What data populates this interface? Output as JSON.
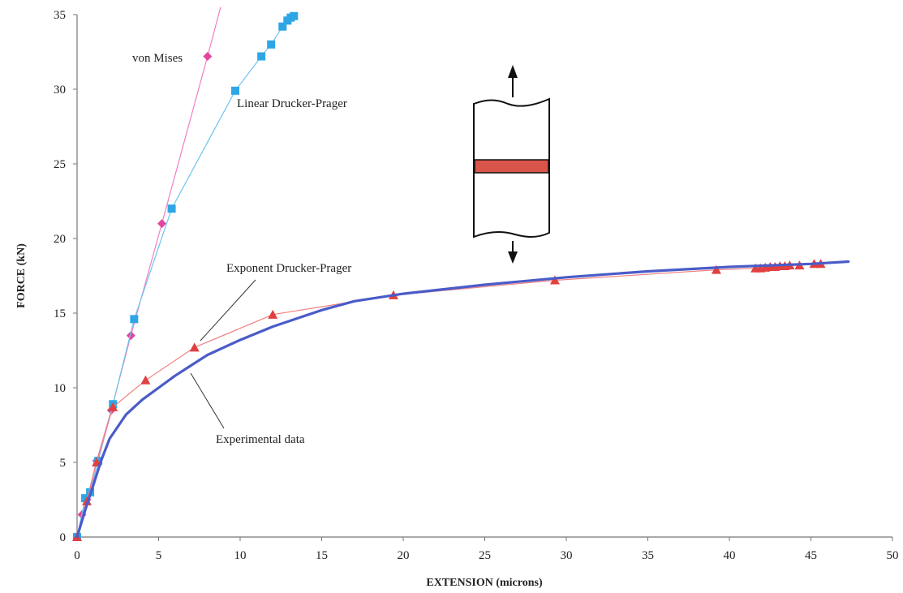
{
  "chart_data": {
    "type": "scatter",
    "xlabel": "EXTENSION (microns)",
    "ylabel": "FORCE (kN)",
    "xlim": [
      0,
      50
    ],
    "ylim": [
      0,
      35
    ],
    "x_ticks": [
      0,
      5,
      10,
      15,
      20,
      25,
      30,
      35,
      40,
      45,
      50
    ],
    "y_ticks": [
      0,
      5,
      10,
      15,
      20,
      25,
      30,
      35
    ],
    "grid": false,
    "legend": "none",
    "annotations": [
      "von Mises",
      "Linear Drucker-Prager",
      "Exponent Drucker-Prager",
      "Experimental data"
    ],
    "series": [
      {
        "label_ref": "von Mises",
        "marker": "diamond",
        "color": "#e0479e",
        "line_color": "#f27fc4",
        "points": [
          [
            0,
            0
          ],
          [
            0.3,
            1.5
          ],
          [
            0.6,
            2.5
          ],
          [
            1.2,
            5.1
          ],
          [
            2.1,
            8.5
          ],
          [
            3.3,
            13.5
          ],
          [
            5.2,
            21.0
          ],
          [
            8.0,
            32.2
          ]
        ],
        "line_extends_to": [
          8.8,
          35.5
        ]
      },
      {
        "label_ref": "Linear Drucker-Prager",
        "marker": "square",
        "color": "#2ea6e6",
        "line_color": "#6cc4f0",
        "points": [
          [
            0,
            0
          ],
          [
            0.5,
            2.6
          ],
          [
            0.8,
            3.0
          ],
          [
            1.3,
            5.1
          ],
          [
            2.2,
            8.9
          ],
          [
            3.5,
            14.6
          ],
          [
            5.8,
            22.0
          ],
          [
            9.7,
            29.9
          ],
          [
            11.3,
            32.2
          ],
          [
            11.9,
            33.0
          ],
          [
            12.6,
            34.2
          ],
          [
            12.9,
            34.6
          ],
          [
            13.1,
            34.8
          ],
          [
            13.3,
            34.9
          ]
        ]
      },
      {
        "label_ref": "Exponent Drucker-Prager",
        "marker": "triangle",
        "color": "#e04040",
        "line_color": "#f08080",
        "points": [
          [
            0,
            0
          ],
          [
            0.6,
            2.4
          ],
          [
            1.2,
            5.0
          ],
          [
            2.2,
            8.7
          ],
          [
            4.2,
            10.5
          ],
          [
            7.2,
            12.7
          ],
          [
            12.0,
            14.9
          ],
          [
            19.4,
            16.2
          ],
          [
            29.3,
            17.2
          ],
          [
            39.2,
            17.9
          ],
          [
            41.6,
            18.0
          ],
          [
            41.9,
            18.0
          ],
          [
            42.2,
            18.05
          ],
          [
            42.5,
            18.1
          ],
          [
            42.8,
            18.1
          ],
          [
            43.1,
            18.15
          ],
          [
            43.4,
            18.15
          ],
          [
            43.7,
            18.2
          ],
          [
            44.3,
            18.2
          ],
          [
            45.2,
            18.3
          ],
          [
            45.6,
            18.3
          ]
        ]
      },
      {
        "label_ref": "Experimental data",
        "marker": "none",
        "color": "#4a5cc8",
        "points": [
          [
            0,
            0
          ],
          [
            0.5,
            1.8
          ],
          [
            1.0,
            3.5
          ],
          [
            1.5,
            5.2
          ],
          [
            2.0,
            6.6
          ],
          [
            3.0,
            8.2
          ],
          [
            4.0,
            9.2
          ],
          [
            5.0,
            10.0
          ],
          [
            6.0,
            10.8
          ],
          [
            7.0,
            11.5
          ],
          [
            8.0,
            12.2
          ],
          [
            10.0,
            13.2
          ],
          [
            12.0,
            14.1
          ],
          [
            15.0,
            15.2
          ],
          [
            17.0,
            15.8
          ],
          [
            20.0,
            16.3
          ],
          [
            25.0,
            16.9
          ],
          [
            30.0,
            17.4
          ],
          [
            35.0,
            17.8
          ],
          [
            40.0,
            18.1
          ],
          [
            45.0,
            18.3
          ],
          [
            47.3,
            18.45
          ]
        ]
      }
    ]
  }
}
